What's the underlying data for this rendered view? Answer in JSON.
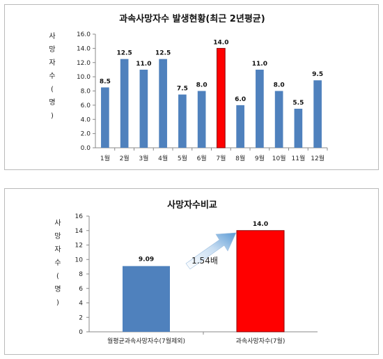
{
  "chart_data": [
    {
      "type": "bar",
      "title": "과속사망자수 발생현황(최근 2년평균)",
      "ylabel": "사망자수(명)",
      "categories": [
        "1월",
        "2월",
        "3월",
        "4월",
        "5월",
        "6월",
        "7월",
        "8월",
        "9월",
        "10월",
        "11월",
        "12월"
      ],
      "values": [
        8.5,
        12.5,
        11.0,
        12.5,
        7.5,
        8.0,
        14.0,
        6.0,
        11.0,
        8.0,
        5.5,
        9.5
      ],
      "value_labels": [
        "8.5",
        "12.5",
        "11.0",
        "12.5",
        "7.5",
        "8.0",
        "14.0",
        "6.0",
        "11.0",
        "8.0",
        "5.5",
        "9.5"
      ],
      "ylim": [
        0,
        16
      ],
      "yticks": [
        "0.0",
        "2.0",
        "4.0",
        "6.0",
        "8.0",
        "10.0",
        "12.0",
        "14.0",
        "16.0"
      ],
      "bar_color": "#4f81bd",
      "highlight_color": "#ff0000",
      "highlight_index": 6,
      "grid": false
    },
    {
      "type": "bar",
      "title": "사망자수비교",
      "ylabel": "사망자수(명)",
      "categories": [
        "월평균과속사망자수(7월제외)",
        "과속사망자수(7월)"
      ],
      "values": [
        9.09,
        14.0
      ],
      "value_labels": [
        "9.09",
        "14.0"
      ],
      "ylim": [
        0,
        16
      ],
      "yticks": [
        "0",
        "2",
        "4",
        "6",
        "8",
        "10",
        "12",
        "14",
        "16"
      ],
      "colors": [
        "#4f81bd",
        "#ff0000"
      ],
      "annotation": "1.54배",
      "grid": false
    }
  ]
}
